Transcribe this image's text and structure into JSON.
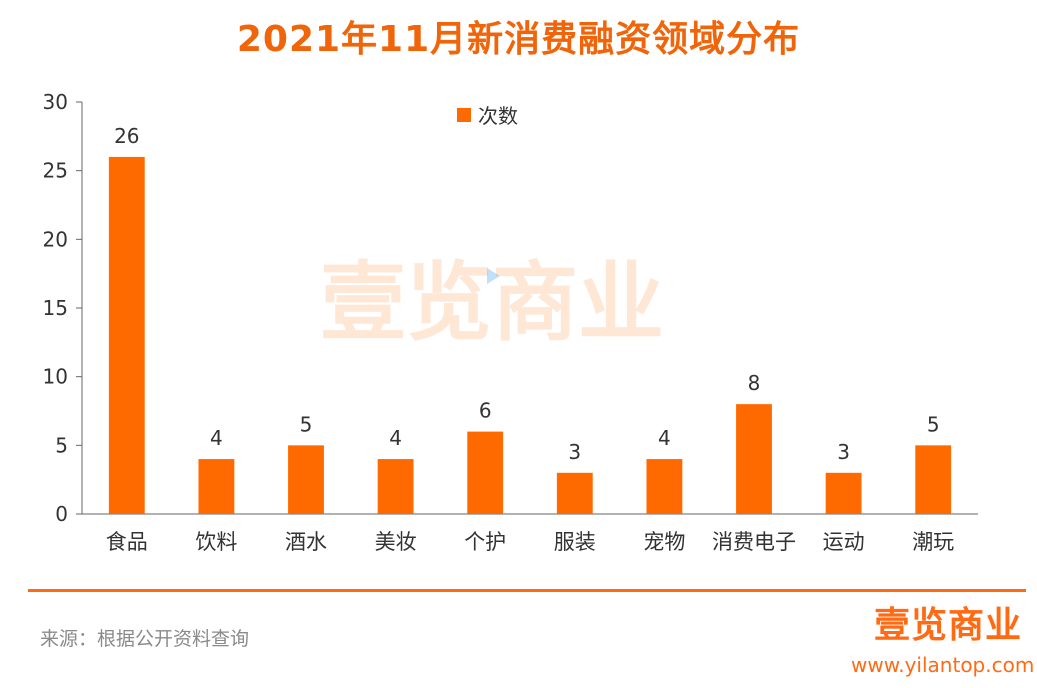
{
  "header": {
    "title": "2021年11月新消费融资领域分布"
  },
  "chart_data": {
    "type": "bar",
    "categories": [
      "食品",
      "饮料",
      "酒水",
      "美妆",
      "个护",
      "服装",
      "宠物",
      "消费电子",
      "运动",
      "潮玩"
    ],
    "series": [
      {
        "name": "次数",
        "values": [
          26,
          4,
          5,
          4,
          6,
          3,
          4,
          8,
          3,
          5
        ]
      }
    ],
    "ylim": [
      0,
      30
    ],
    "yticks": [
      0,
      5,
      10,
      15,
      20,
      25,
      30
    ],
    "data_labels": true,
    "legend": "top-center",
    "grid": false,
    "bar_color": "#ff6a00",
    "watermark": "壹览商业"
  },
  "footer": {
    "source": "来源：根据公开资料查询",
    "brand": "壹览商业",
    "website": "www.yilantop.com",
    "accent_color": "#ff6a13"
  }
}
